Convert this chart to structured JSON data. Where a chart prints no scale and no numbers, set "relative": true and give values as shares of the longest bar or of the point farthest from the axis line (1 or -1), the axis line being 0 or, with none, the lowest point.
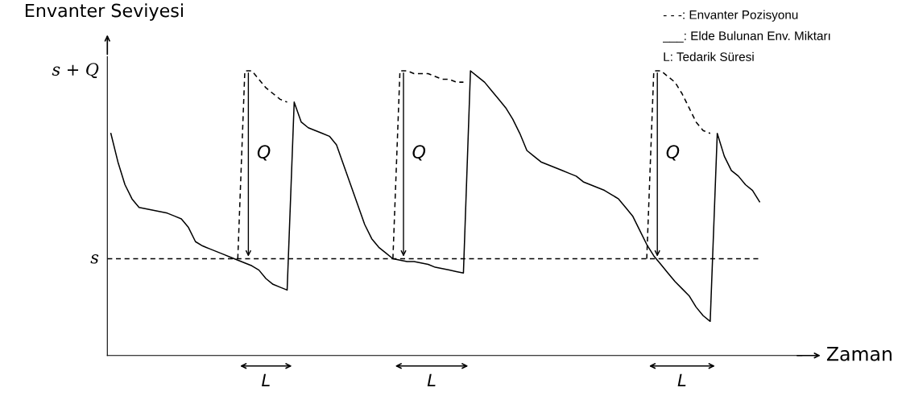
{
  "chart_data": {
    "type": "line",
    "relative": true,
    "ylabel": "Envanter Seviyesi",
    "xlabel": "Zaman",
    "tick_labels": false,
    "categories": [
      null,
      null,
      null,
      null,
      null,
      null,
      null,
      null,
      null,
      null,
      null,
      null,
      null,
      null,
      null,
      null,
      null,
      null,
      null,
      null,
      null,
      null,
      null,
      null,
      null,
      null,
      null,
      null,
      null,
      null,
      null,
      null,
      null,
      null,
      null,
      null,
      null,
      null,
      null,
      null,
      null,
      null,
      null,
      null,
      null,
      null,
      null,
      null,
      null,
      null,
      null,
      null,
      null,
      null,
      null,
      null,
      null,
      null,
      null,
      null,
      null,
      null,
      null,
      null,
      null,
      null,
      null,
      null,
      null,
      null,
      null,
      null,
      null,
      null,
      null,
      null,
      null,
      null,
      null,
      null,
      null,
      null,
      null,
      null,
      null,
      null,
      null,
      null,
      null,
      null,
      null,
      null,
      null
    ],
    "series": [
      {
        "color": "#000000",
        "line_style": "solid",
        "values": [
          0.78,
          0.68,
          0.6,
          0.55,
          0.52,
          0.515,
          0.51,
          0.505,
          0.5,
          0.49,
          0.48,
          0.45,
          0.4,
          0.385,
          0.375,
          0.365,
          0.355,
          0.345,
          0.335,
          0.325,
          0.315,
          0.3,
          0.27,
          0.25,
          0.24,
          0.23,
          0.89,
          0.82,
          0.8,
          0.79,
          0.78,
          0.77,
          0.74,
          0.67,
          0.6,
          0.53,
          0.46,
          0.41,
          0.38,
          0.36,
          0.34,
          0.335,
          0.33,
          0.33,
          0.325,
          0.32,
          0.31,
          0.305,
          0.3,
          0.295,
          0.29,
          1.0,
          0.98,
          0.96,
          0.93,
          0.9,
          0.87,
          0.83,
          0.78,
          0.72,
          0.7,
          0.68,
          0.67,
          0.66,
          0.65,
          0.64,
          0.63,
          0.61,
          0.6,
          0.59,
          0.58,
          0.565,
          0.55,
          0.52,
          0.49,
          0.44,
          0.39,
          0.35,
          0.32,
          0.29,
          0.26,
          0.235,
          0.21,
          0.17,
          0.14,
          0.12,
          0.78,
          0.7,
          0.65,
          0.63,
          0.6,
          0.58,
          0.54
        ]
      },
      {
        "color": "#000000",
        "line_style": "dashed",
        "values": [
          null,
          null,
          null,
          null,
          null,
          null,
          null,
          null,
          null,
          null,
          null,
          null,
          null,
          null,
          null,
          null,
          null,
          null,
          0.34,
          1.0,
          1.0,
          0.97,
          0.94,
          0.92,
          0.9,
          0.89,
          null,
          null,
          null,
          null,
          null,
          null,
          null,
          null,
          null,
          null,
          null,
          null,
          null,
          null,
          0.34,
          1.0,
          1.0,
          0.99,
          0.99,
          0.99,
          0.98,
          0.97,
          0.97,
          0.96,
          0.96,
          null,
          null,
          null,
          null,
          null,
          null,
          null,
          null,
          null,
          null,
          null,
          null,
          null,
          null,
          null,
          null,
          null,
          null,
          null,
          null,
          null,
          null,
          null,
          null,
          null,
          0.34,
          1.0,
          1.0,
          0.98,
          0.96,
          0.92,
          0.87,
          0.82,
          0.79,
          0.78,
          null,
          null,
          null,
          null,
          null,
          null,
          null
        ]
      }
    ],
    "ref_lines": [
      {
        "axis": "y",
        "value": 0.34,
        "label": "s",
        "line_style": "dashed",
        "color": "#000000"
      }
    ],
    "annotations": [
      "s + Q",
      "Q",
      "Q",
      "Q",
      "L",
      "L",
      "L",
      "- - -: Envanter Pozisyonu",
      "___: Elde Bulunan Env. Miktarı",
      "L: Tedarik Süresi"
    ]
  }
}
